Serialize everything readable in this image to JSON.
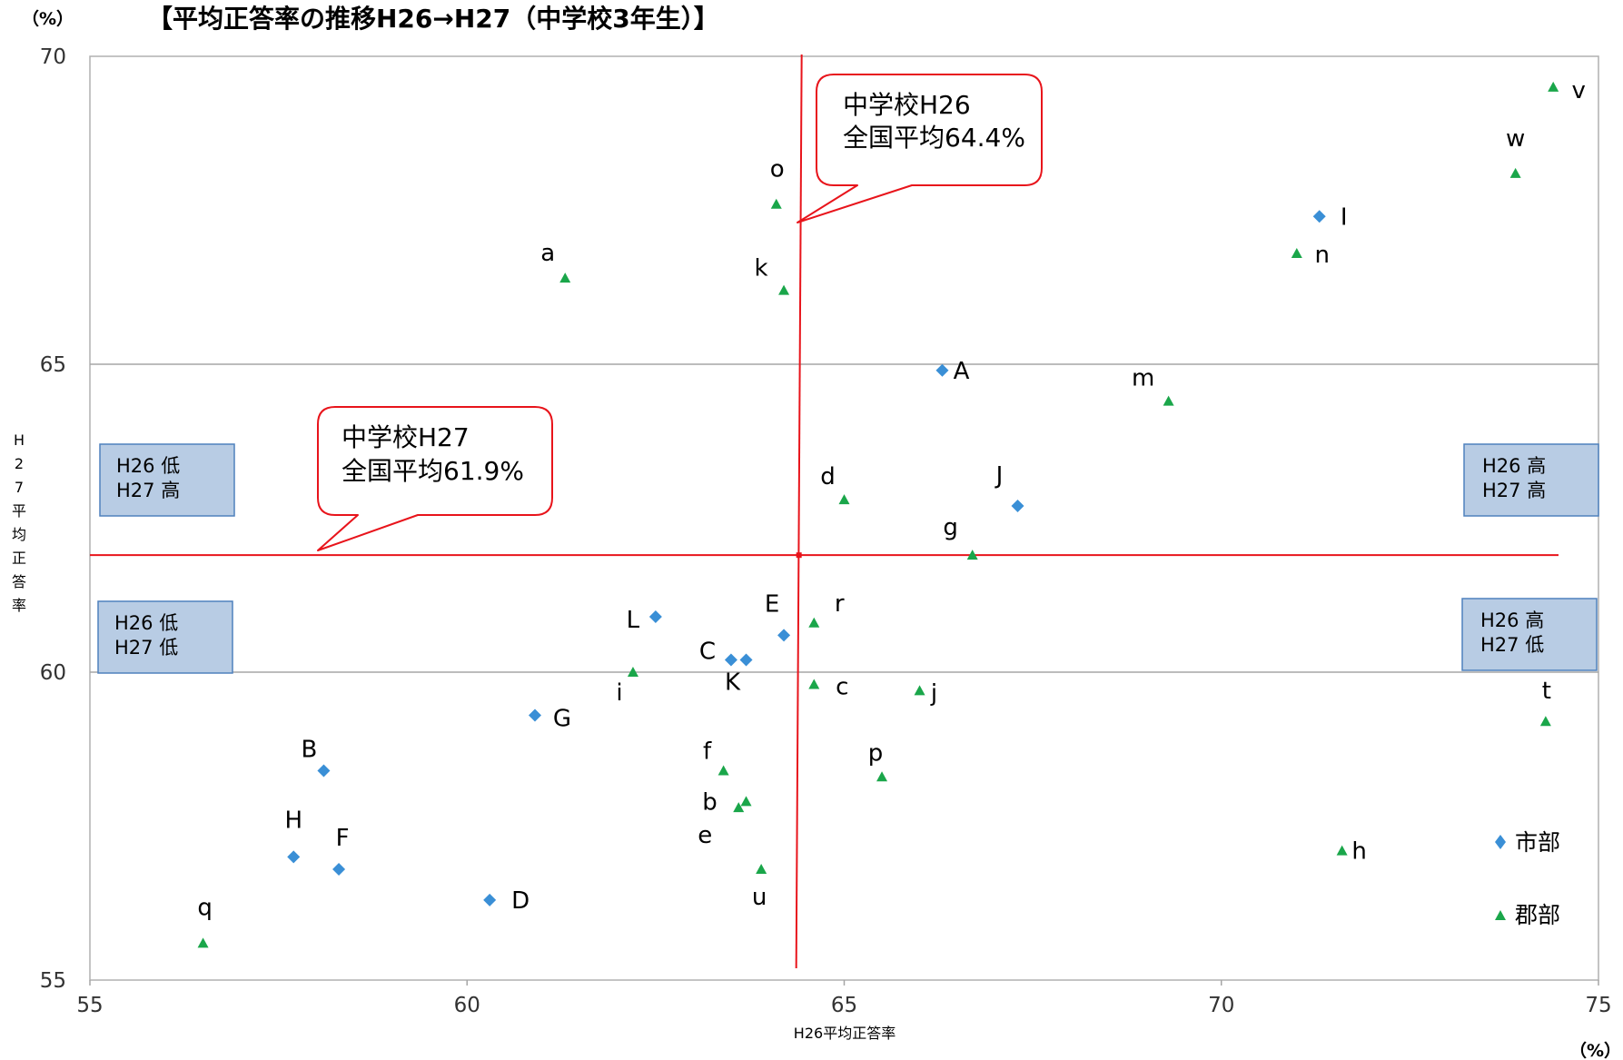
{
  "chart_data": {
    "type": "scatter",
    "title": "【平均正答率の推移H26→H27（中学校3年生）】",
    "y_unit": "（%）",
    "x_unit": "（%）",
    "xlabel": "H26平均正答率",
    "ylabel": "H27平均正答率",
    "xlim": [
      55,
      75
    ],
    "ylim": [
      55,
      70
    ],
    "x_ticks": [
      55,
      60,
      65,
      70,
      75
    ],
    "y_ticks": [
      55,
      60,
      65,
      70
    ],
    "grid": "horizontal",
    "legend_placement": "bottom-right",
    "colors": {
      "shibu": "#3a8fd6",
      "gunbu": "#1aa64a",
      "reference": "#e8141b",
      "quadrant_box": "#b8cce4"
    },
    "series": [
      {
        "name": "市部",
        "marker": "diamond",
        "points": [
          {
            "label": "A",
            "x": 66.3,
            "y": 64.9
          },
          {
            "label": "B",
            "x": 58.1,
            "y": 58.4
          },
          {
            "label": "C",
            "x": 63.5,
            "y": 60.2
          },
          {
            "label": "D",
            "x": 60.3,
            "y": 56.3
          },
          {
            "label": "E",
            "x": 64.2,
            "y": 60.6
          },
          {
            "label": "F",
            "x": 58.3,
            "y": 56.8
          },
          {
            "label": "G",
            "x": 60.9,
            "y": 59.3
          },
          {
            "label": "H",
            "x": 57.7,
            "y": 57.0
          },
          {
            "label": "I",
            "x": 71.3,
            "y": 67.4
          },
          {
            "label": "J",
            "x": 67.3,
            "y": 62.7
          },
          {
            "label": "K",
            "x": 63.7,
            "y": 60.2
          },
          {
            "label": "L",
            "x": 62.5,
            "y": 60.9
          }
        ]
      },
      {
        "name": "郡部",
        "marker": "triangle",
        "points": [
          {
            "label": "a",
            "x": 61.3,
            "y": 66.4
          },
          {
            "label": "b",
            "x": 63.7,
            "y": 57.9
          },
          {
            "label": "c",
            "x": 64.6,
            "y": 59.8
          },
          {
            "label": "d",
            "x": 65.0,
            "y": 62.8
          },
          {
            "label": "e",
            "x": 63.6,
            "y": 57.8
          },
          {
            "label": "f",
            "x": 63.4,
            "y": 58.4
          },
          {
            "label": "g",
            "x": 66.7,
            "y": 61.9
          },
          {
            "label": "h",
            "x": 71.6,
            "y": 57.1
          },
          {
            "label": "i",
            "x": 62.2,
            "y": 60.0
          },
          {
            "label": "j",
            "x": 66.0,
            "y": 59.7
          },
          {
            "label": "k",
            "x": 64.2,
            "y": 66.2
          },
          {
            "label": "m",
            "x": 69.3,
            "y": 64.4
          },
          {
            "label": "n",
            "x": 71.0,
            "y": 66.8
          },
          {
            "label": "o",
            "x": 64.1,
            "y": 67.6
          },
          {
            "label": "p",
            "x": 65.5,
            "y": 58.3
          },
          {
            "label": "q",
            "x": 56.5,
            "y": 55.6
          },
          {
            "label": "r",
            "x": 64.6,
            "y": 60.8
          },
          {
            "label": "t",
            "x": 74.3,
            "y": 59.2
          },
          {
            "label": "u",
            "x": 63.9,
            "y": 56.8
          },
          {
            "label": "v",
            "x": 74.4,
            "y": 69.5
          },
          {
            "label": "w",
            "x": 73.9,
            "y": 68.1
          }
        ]
      }
    ],
    "reference_lines": {
      "h26_national_average": 64.4,
      "h27_national_average": 61.9
    },
    "annotations": {
      "callout_h26": [
        "中学校H26",
        "全国平均64.4%"
      ],
      "callout_h27": [
        "中学校H27",
        "全国平均61.9%"
      ],
      "quadrant_labels": {
        "top_left": [
          "H26 低",
          "H27 高"
        ],
        "bottom_left": [
          "H26 低",
          "H27 低"
        ],
        "top_right": [
          "H26 高",
          "H27 高"
        ],
        "bottom_right": [
          "H26 高",
          "H27 低"
        ]
      }
    }
  }
}
